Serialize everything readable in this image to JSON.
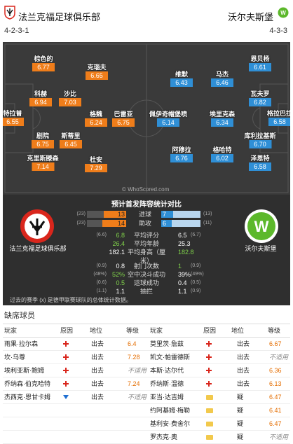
{
  "header": {
    "home_team": "法兰克福足球俱乐部",
    "away_team": "沃尔夫斯堡",
    "home_formation": "4-2-3-1",
    "away_formation": "4-3-3"
  },
  "colors": {
    "home_rating": "#ef7d1a",
    "away_rating": "#2f8fd6",
    "home_bar": "#ef7d1a",
    "away_bar": "#2f8fd6"
  },
  "pitch": {
    "watermark": "© WhoScored.com",
    "home_players": [
      {
        "name": "特拉普",
        "rating": "6.55"
      },
      {
        "name": "科赫",
        "rating": "6.94"
      },
      {
        "name": "棕色的",
        "rating": "6.77"
      },
      {
        "name": "剧院",
        "rating": "6.75"
      },
      {
        "name": "克里斯滕森",
        "rating": "7.14"
      },
      {
        "name": "沙比",
        "rating": "7.03"
      },
      {
        "name": "斯蒂里",
        "rating": "6.45"
      },
      {
        "name": "克瑙夫",
        "rating": "6.65"
      },
      {
        "name": "格魏",
        "rating": "6.24"
      },
      {
        "name": "杜安",
        "rating": "7.29"
      },
      {
        "name": "巴雷亚",
        "rating": "6.75"
      }
    ],
    "away_players": [
      {
        "name": "佩伊奇帽堡喷",
        "rating": "6.14"
      },
      {
        "name": "维默",
        "rating": "6.43"
      },
      {
        "name": "阿穆拉",
        "rating": "6.76"
      },
      {
        "name": "马杰",
        "rating": "6.46"
      },
      {
        "name": "埃里克森",
        "rating": "6.34"
      },
      {
        "name": "格哈特",
        "rating": "6.02"
      },
      {
        "name": "恩贝杨",
        "rating": "6.61"
      },
      {
        "name": "瓦夫罗",
        "rating": "6.82"
      },
      {
        "name": "库利拉基斯",
        "rating": "6.70"
      },
      {
        "name": "泽恩特",
        "rating": "6.58"
      },
      {
        "name": "格拉巴拉",
        "rating": "6.58"
      }
    ]
  },
  "stats": {
    "title": "预计首发阵容统计对比",
    "home_label": "法兰克福足球俱乐部",
    "away_label": "沃尔夫斯堡",
    "bars": [
      {
        "label": "进球",
        "home": "13",
        "away": "7",
        "home_prev": "(23)",
        "away_prev": "(13)",
        "home_val": 13,
        "away_val": 7
      },
      {
        "label": "助攻",
        "home": "14",
        "away": "6",
        "home_prev": "(23)",
        "away_prev": "(11)",
        "home_val": 14,
        "away_val": 6
      }
    ],
    "rows": [
      {
        "label": "平均评分",
        "home": "6.8",
        "away": "6.5",
        "home_prev": "(6.6)",
        "away_prev": "(6.7)",
        "home_green": true,
        "away_green": false
      },
      {
        "label": "平均年龄",
        "home": "26.4",
        "away": "25.3",
        "home_prev": "",
        "away_prev": "",
        "home_green": true,
        "away_green": false
      },
      {
        "label": "平均身高（厘米）",
        "home": "182.1",
        "away": "182.8",
        "home_prev": "",
        "away_prev": "",
        "home_green": false,
        "away_green": true
      },
      {
        "label": "射门次数",
        "home": "0.8",
        "away": "1",
        "home_prev": "(0.9)",
        "away_prev": "(0.9)",
        "home_green": false,
        "away_green": true
      },
      {
        "label": "空中决斗成功",
        "home": "52%",
        "away": "39%",
        "home_prev": "(48%)",
        "away_prev": "(49%)",
        "home_green": true,
        "away_green": false
      },
      {
        "label": "运球成功",
        "home": "0.5",
        "away": "0.4",
        "home_prev": "(0.6)",
        "away_prev": "(0.5)",
        "home_green": true,
        "away_green": false
      },
      {
        "label": "抽拦",
        "home": "1.1",
        "away": "1.1",
        "home_prev": "(1.1)",
        "away_prev": "(0.9)",
        "home_green": false,
        "away_green": false
      }
    ],
    "note": "过去的赛季 (x) 是德甲联赛球队的总体统计数据。"
  },
  "absent": {
    "title": "缺席球员",
    "headers": {
      "player": "玩家",
      "reason": "原因",
      "status": "地位",
      "grade": "等级"
    },
    "home": [
      {
        "player": "雨果·拉尔森",
        "reason": "injury",
        "status": "出去",
        "grade": "6.4",
        "grade_style": "orange"
      },
      {
        "player": "坎·乌尊",
        "reason": "injury",
        "status": "出去",
        "grade": "7.28",
        "grade_style": "orange"
      },
      {
        "player": "埃利亚斯·鲍姆",
        "reason": "injury",
        "status": "出去",
        "grade": "不适用",
        "grade_style": "grey"
      },
      {
        "player": "乔纳森·伯克哈特",
        "reason": "injury",
        "status": "出去",
        "grade": "7.24",
        "grade_style": "orange"
      },
      {
        "player": "杰西克·恩甘卡姆",
        "reason": "down",
        "status": "出去",
        "grade": "不适用",
        "grade_style": "grey"
      }
    ],
    "away": [
      {
        "player": "莫里茨·詹兹",
        "reason": "injury",
        "status": "出去",
        "grade": "6.67",
        "grade_style": "orange"
      },
      {
        "player": "凯文·帕雷德斯",
        "reason": "injury",
        "status": "出去",
        "grade": "不适用",
        "grade_style": "grey"
      },
      {
        "player": "本斯·达尔代",
        "reason": "injury",
        "status": "出去",
        "grade": "6.36",
        "grade_style": "orange"
      },
      {
        "player": "乔纳斯·温德",
        "reason": "injury",
        "status": "出去",
        "grade": "6.13",
        "grade_style": "orange"
      },
      {
        "player": "亚当·达吉姆",
        "reason": "doubt",
        "status": "疑",
        "grade": "6.47",
        "grade_style": "orange"
      },
      {
        "player": "约阿基姆·梅勒",
        "reason": "doubt",
        "status": "疑",
        "grade": "6.41",
        "grade_style": "orange"
      },
      {
        "player": "基利安·费舍尔",
        "reason": "doubt",
        "status": "疑",
        "grade": "6.47",
        "grade_style": "orange"
      },
      {
        "player": "罗杰克·奥",
        "reason": "doubt",
        "status": "疑",
        "grade": "不适用",
        "grade_style": "grey"
      }
    ]
  }
}
